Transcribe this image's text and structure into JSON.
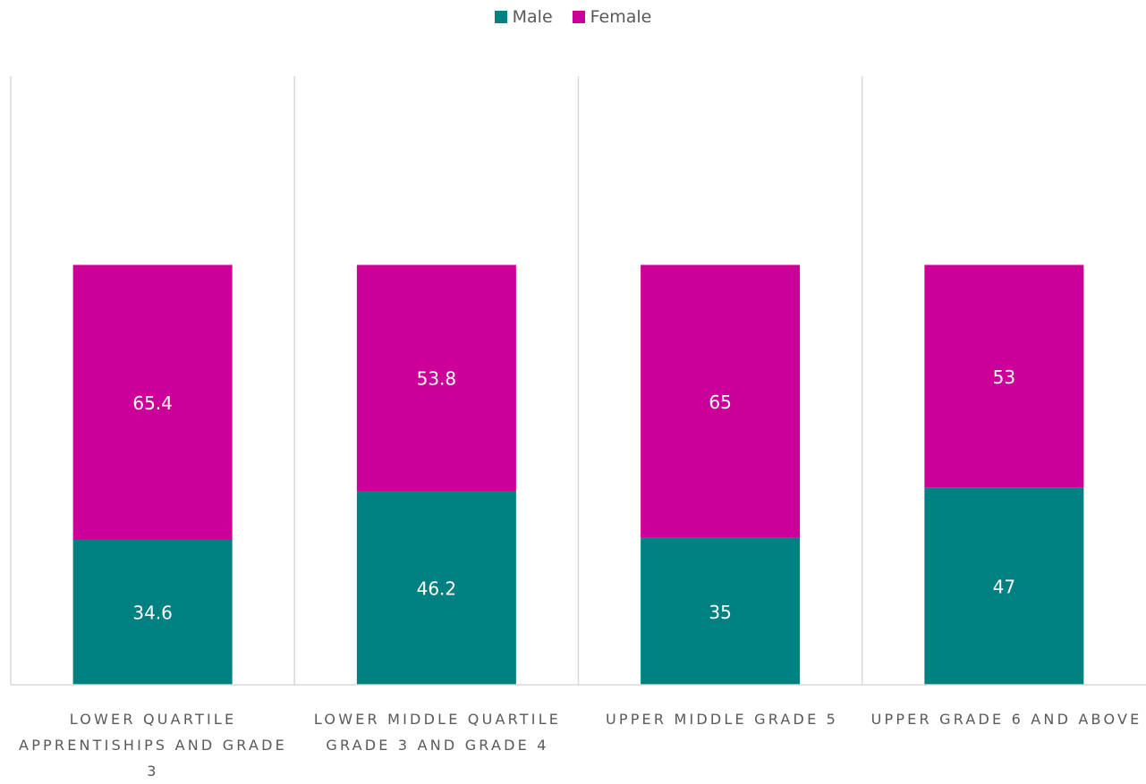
{
  "chart_data": {
    "type": "bar",
    "stacked": true,
    "categories": [
      "LOWER QUARTILE APPRENTISHIPS AND GRADE 3",
      "LOWER MIDDLE QUARTILE GRADE 3 AND GRADE 4",
      "UPPER MIDDLE GRADE 5",
      "UPPER GRADE 6 AND ABOVE"
    ],
    "series": [
      {
        "name": "Male",
        "color": "#008080",
        "values": [
          34.6,
          46.2,
          35,
          47
        ]
      },
      {
        "name": "Female",
        "color": "#CC0099",
        "values": [
          65.4,
          53.8,
          65,
          53
        ]
      }
    ],
    "ylim": [
      0,
      145
    ],
    "grid": false,
    "legend_position": "top-center",
    "title": "",
    "xlabel": "",
    "ylabel": ""
  }
}
